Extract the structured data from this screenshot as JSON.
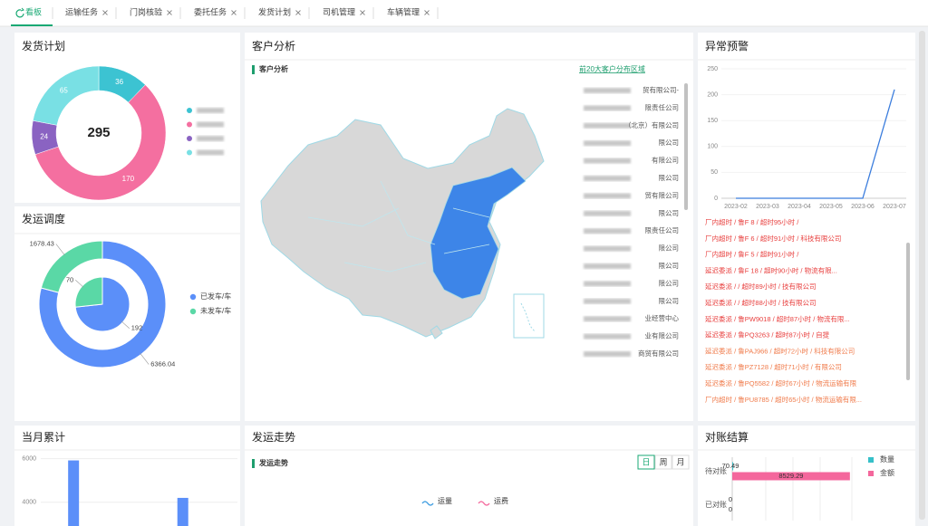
{
  "tabs": [
    "看板",
    "运输任务",
    "门岗核验",
    "委托任务",
    "发货计划",
    "司机管理",
    "车辆管理"
  ],
  "customer_analysis": {
    "title": "客户分析",
    "subtitle": "客户分析",
    "link": "前20大客户分布区域",
    "customers": [
      "贸有限公司-",
      "限责任公司",
      "（北京）有限公司",
      "限公司",
      "有限公司",
      "限公司",
      "贸有限公司",
      "限公司",
      "限责任公司",
      "限公司",
      "限公司",
      "限公司",
      "限公司",
      "业经营中心",
      "业有限公司",
      "商贸有限公司"
    ]
  },
  "shipping_trend": {
    "title": "发运走势",
    "subtitle": "发运走势",
    "periods": [
      "日",
      "周",
      "月"
    ],
    "legend": [
      "运量",
      "运费"
    ]
  },
  "alerts": [
    {
      "text": "厂内超时 / 鲁F 8 / 超时95小时 /",
      "color": "#e8403f"
    },
    {
      "text": "厂内超时 / 鲁F 6 / 超时91小时 / 科技有限公司",
      "color": "#e8403f"
    },
    {
      "text": "厂内超时 / 鲁F 5 / 超时91小时 /",
      "color": "#e8403f"
    },
    {
      "text": "延迟委派 / 鲁F 18 / 超时90小时 / 物流有限...",
      "color": "#e8403f"
    },
    {
      "text": "延迟委派 / / 超时89小时 / 技有限公司",
      "color": "#e8403f"
    },
    {
      "text": "延迟委派 / / 超时88小时 / 技有限公司",
      "color": "#e8403f"
    },
    {
      "text": "延迟委派 / 鲁PW9018 / 超时87小时 / 物流有限...",
      "color": "#e8403f"
    },
    {
      "text": "延迟委派 / 鲁PQ3263 / 超时87小时 / 自提",
      "color": "#e8403f"
    },
    {
      "text": "延迟委派 / 鲁PAJ966 / 超时72小时 / 科技有限公司",
      "color": "#f07b4b"
    },
    {
      "text": "延迟委派 / 鲁PZ7128 / 超时71小时 / 有限公司",
      "color": "#f07b4b"
    },
    {
      "text": "延迟委派 / 鲁PQ5582 / 超时67小时 / 物流运输有限",
      "color": "#f07b4b"
    },
    {
      "text": "厂内超时 / 鲁PU8785 / 超时65小时 / 物流运输有限...",
      "color": "#f07b4b"
    }
  ],
  "chart_data": [
    {
      "type": "donut",
      "title": "发货计划",
      "total": 295,
      "values": [
        36,
        170,
        24,
        65
      ],
      "colors": [
        "#3cc3d2",
        "#f46fa0",
        "#8a63c2",
        "#79e0e4"
      ]
    },
    {
      "type": "nested-donut",
      "title": "发运调度",
      "series": [
        {
          "name": "已发车/车",
          "color": "#5b8ff9",
          "values": [
            6366.04,
            192
          ]
        },
        {
          "name": "未发车/车",
          "color": "#5ad8a6",
          "values": [
            1678.43,
            70
          ]
        }
      ]
    },
    {
      "type": "line",
      "title": "异常预警",
      "categories": [
        "2023-02",
        "2023-03",
        "2023-04",
        "2023-05",
        "2023-06",
        "2023-07"
      ],
      "series": [
        {
          "color": "#3b7ddd",
          "values": [
            0,
            0,
            0,
            0,
            0,
            210
          ]
        }
      ],
      "ylim": [
        0,
        250
      ],
      "yticks": [
        0,
        50,
        100,
        150,
        200,
        250
      ]
    },
    {
      "type": "bar",
      "title": "当月累计",
      "categories": [
        null,
        null,
        null,
        null,
        null,
        null,
        null,
        null,
        null
      ],
      "values": [
        null,
        5920,
        null,
        null,
        null,
        null,
        4200,
        null,
        null
      ],
      "color": "#5b8ff9",
      "ylim": [
        3200,
        6400
      ],
      "yticks": [
        4000,
        6000
      ],
      "grid": true
    },
    {
      "type": "hbar",
      "title": "对账结算",
      "categories": [
        "待对账",
        "已对账"
      ],
      "series": [
        {
          "name": "数量",
          "color": "#36c0c9",
          "values": [
            70.49,
            0
          ]
        },
        {
          "name": "金额",
          "color": "#f4679c",
          "values": [
            8529.29,
            0
          ]
        }
      ],
      "xlim": [
        0,
        9000
      ]
    }
  ]
}
